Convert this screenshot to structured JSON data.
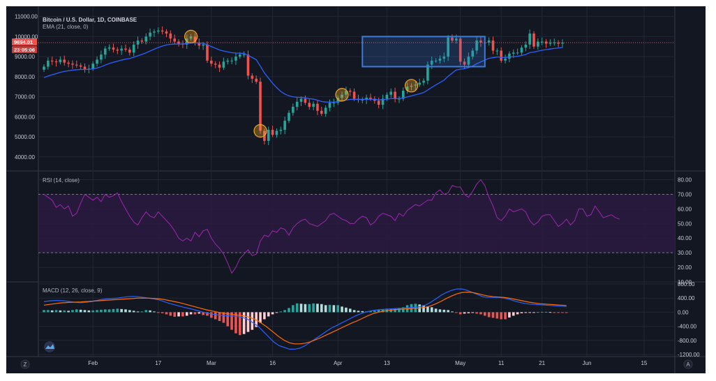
{
  "chart_data": [
    {
      "type": "candlestick",
      "title": "Bitcoin / U.S. Dollar, 1D, COINBASE",
      "indicator": "EMA (21, close, 0)",
      "y_ticks": [
        4000,
        5000,
        6000,
        7000,
        8000,
        9000,
        10000,
        11000
      ],
      "y_tick_labels": [
        "4000.00",
        "5000.00",
        "6000.00",
        "7000.00",
        "8000.00",
        "9000.00",
        "10000.00",
        "11000.00"
      ],
      "ylim": [
        3300,
        11300
      ],
      "last_price_label": "9694.01",
      "countdown_label": "23:05:06",
      "grid": true,
      "colors": {
        "up": "#26a69a",
        "down": "#ef5350",
        "ema": "#2962ff",
        "highlight_circle": "#f5a623",
        "box": "#3d7bd9"
      },
      "annotations": {
        "circles_on_days": [
          36,
          53,
          73,
          90
        ],
        "channel_box": {
          "x_start_day": 78,
          "x_end_day": 108,
          "top_left": 10000,
          "top_right": 10000,
          "bottom_left": 8500,
          "bottom_right": 8500
        }
      },
      "closes": [
        8500,
        8800,
        8760,
        8720,
        8850,
        8700,
        8650,
        8600,
        8560,
        8500,
        8380,
        8400,
        8650,
        8850,
        9100,
        9400,
        9450,
        9350,
        9300,
        9400,
        9350,
        9200,
        9600,
        9800,
        9750,
        10000,
        10200,
        10250,
        10300,
        10250,
        10150,
        9900,
        9750,
        9650,
        9600,
        9900,
        10000,
        9700,
        9550,
        9600,
        8800,
        8650,
        8600,
        8450,
        8750,
        8800,
        8800,
        9000,
        9100,
        9100,
        8050,
        7900,
        7750,
        5300,
        4800,
        5350,
        5100,
        5300,
        5350,
        5800,
        6200,
        6500,
        6750,
        6900,
        6700,
        6500,
        6650,
        6300,
        6150,
        6450,
        6700,
        6700,
        6950,
        7100,
        7300,
        7250,
        6900,
        6850,
        6850,
        6950,
        6900,
        6800,
        6600,
        6900,
        7100,
        7250,
        6900,
        6900,
        7300,
        7500,
        7550,
        7600,
        7700,
        7800,
        8600,
        8800,
        8800,
        8900,
        9000,
        9950,
        9800,
        9900,
        8750,
        8600,
        9000,
        9300,
        9800,
        9700,
        9700,
        9800,
        9300,
        9300,
        8800,
        8900,
        9150,
        9200,
        9200,
        9450,
        9600,
        10150,
        9500,
        9750,
        9750,
        9650,
        9700,
        9700,
        9650,
        9700
      ],
      "x_tick_labels": [
        {
          "label": "Feb",
          "day": 12
        },
        {
          "label": "17",
          "day": 28
        },
        {
          "label": "Mar",
          "day": 41
        },
        {
          "label": "16",
          "day": 56
        },
        {
          "label": "Apr",
          "day": 72
        },
        {
          "label": "13",
          "day": 84
        },
        {
          "label": "May",
          "day": 102
        },
        {
          "label": "11",
          "day": 112
        },
        {
          "label": "21",
          "day": 122
        },
        {
          "label": "Jun",
          "day": 133
        },
        {
          "label": "15",
          "day": 147
        }
      ]
    },
    {
      "type": "line",
      "title": "RSI (14, close)",
      "y_ticks": [
        10,
        20,
        30,
        40,
        50,
        60,
        70,
        80
      ],
      "y_tick_labels": [
        "10.00",
        "20.00",
        "30.00",
        "40.00",
        "50.00",
        "60.00",
        "70.00",
        "80.00"
      ],
      "ylim": [
        10,
        86
      ],
      "bands": {
        "upper": 70,
        "lower": 30
      },
      "colors": {
        "line": "#9c27b0",
        "band_fill": "#2b1a3f"
      },
      "values": [
        70,
        68,
        66,
        61,
        63,
        60,
        62,
        55,
        57,
        64,
        70,
        68,
        66,
        68,
        65,
        70,
        68,
        69,
        71,
        65,
        60,
        55,
        51,
        49,
        54,
        58,
        55,
        54,
        58,
        55,
        52,
        49,
        45,
        40,
        38,
        40,
        38,
        44,
        41,
        45,
        46,
        40,
        36,
        33,
        29,
        23,
        16,
        20,
        26,
        29,
        32,
        28,
        29,
        38,
        42,
        41,
        45,
        44,
        47,
        46,
        42,
        47,
        50,
        52,
        53,
        50,
        49,
        48,
        50,
        52,
        56,
        57,
        55,
        53,
        52,
        50,
        50,
        53,
        55,
        54,
        49,
        51,
        55,
        57,
        56,
        55,
        52,
        57,
        55,
        59,
        61,
        63,
        62,
        64,
        66,
        66,
        71,
        73,
        70,
        71,
        76,
        75,
        75,
        70,
        68,
        72,
        77,
        80,
        76,
        68,
        62,
        54,
        52,
        55,
        60,
        58,
        59,
        60,
        58,
        52,
        49,
        51,
        55,
        56,
        56,
        52,
        48,
        50,
        53,
        49,
        52,
        60,
        60,
        55,
        56,
        62,
        58,
        54,
        55,
        56,
        54,
        53
      ]
    },
    {
      "type": "bar+line",
      "title": "MACD (12, 26, close, 9)",
      "y_ticks": [
        -1200,
        -800,
        -400,
        0,
        400,
        800
      ],
      "y_tick_labels": [
        "-1200.00",
        "-800.00",
        "-400.00",
        "0.00",
        "400.00",
        "800.00"
      ],
      "ylim": [
        -1260,
        860
      ],
      "colors": {
        "macd": "#2962ff",
        "signal": "#ff6d00",
        "hist_up_strong": "#26a69a",
        "hist_up_weak": "#b2dfdb",
        "hist_down_strong": "#ef5350",
        "hist_down_weak": "#ffcdd2"
      },
      "histogram": [
        60,
        60,
        50,
        60,
        50,
        50,
        40,
        60,
        80,
        70,
        60,
        50,
        50,
        60,
        70,
        80,
        80,
        90,
        100,
        90,
        80,
        60,
        40,
        20,
        20,
        60,
        50,
        20,
        -10,
        -30,
        -60,
        -100,
        -130,
        -120,
        -120,
        -100,
        -60,
        -60,
        -40,
        -80,
        -100,
        -160,
        -200,
        -250,
        -300,
        -400,
        -500,
        -600,
        -650,
        -620,
        -560,
        -500,
        -420,
        -300,
        -200,
        -120,
        -60,
        -20,
        20,
        60,
        120,
        200,
        250,
        240,
        230,
        230,
        250,
        240,
        230,
        200,
        210,
        200,
        200,
        160,
        130,
        100,
        60,
        40,
        30,
        20,
        30,
        40,
        60,
        80,
        100,
        100,
        100,
        120,
        140,
        200,
        230,
        240,
        220,
        200,
        160,
        140,
        100,
        80,
        70,
        60,
        20,
        -20,
        -60,
        -40,
        -30,
        -20,
        -40,
        -60,
        -100,
        -140,
        -160,
        -180,
        -200,
        -200,
        -150,
        -100,
        -60,
        -30,
        -20,
        -10,
        -5,
        5,
        10,
        10,
        5,
        -10,
        -20,
        -20,
        -20
      ],
      "macd_line": [
        300,
        320,
        330,
        330,
        320,
        300,
        280,
        270,
        280,
        300,
        330,
        360,
        380,
        390,
        400,
        420,
        440,
        450,
        440,
        420,
        400,
        380,
        350,
        300,
        250,
        210,
        170,
        130,
        100,
        60,
        20,
        -20,
        -50,
        -70,
        -90,
        -100,
        -110,
        -120,
        -150,
        -200,
        -300,
        -400,
        -550,
        -700,
        -850,
        -950,
        -1000,
        -1050,
        -1050,
        -1020,
        -950,
        -850,
        -750,
        -650,
        -550,
        -450,
        -380,
        -300,
        -230,
        -150,
        -80,
        -20,
        20,
        50,
        70,
        80,
        90,
        100,
        110,
        120,
        130,
        140,
        160,
        200,
        280,
        380,
        480,
        560,
        620,
        660,
        660,
        620,
        560,
        500,
        440,
        420,
        420,
        420,
        400,
        370,
        320,
        280,
        250,
        230,
        220,
        210,
        200,
        190,
        180,
        170,
        160
      ],
      "signal_line": [
        200,
        220,
        240,
        260,
        270,
        280,
        285,
        290,
        300,
        310,
        320,
        330,
        340,
        350,
        360,
        370,
        380,
        390,
        400,
        400,
        400,
        390,
        380,
        360,
        330,
        300,
        270,
        230,
        190,
        150,
        110,
        70,
        40,
        10,
        -20,
        -40,
        -60,
        -80,
        -100,
        -130,
        -180,
        -250,
        -350,
        -460,
        -580,
        -700,
        -800,
        -870,
        -900,
        -900,
        -880,
        -840,
        -780,
        -720,
        -650,
        -580,
        -510,
        -440,
        -370,
        -300,
        -240,
        -170,
        -100,
        -40,
        0,
        30,
        50,
        70,
        80,
        90,
        100,
        110,
        120,
        140,
        180,
        240,
        310,
        390,
        460,
        520,
        560,
        570,
        560,
        530,
        490,
        460,
        440,
        430,
        420,
        400,
        370,
        340,
        310,
        280,
        260,
        240,
        230,
        220,
        210,
        200,
        190
      ]
    }
  ],
  "ui": {
    "time_zone_button": "Z",
    "auto_scale_button": "A"
  }
}
